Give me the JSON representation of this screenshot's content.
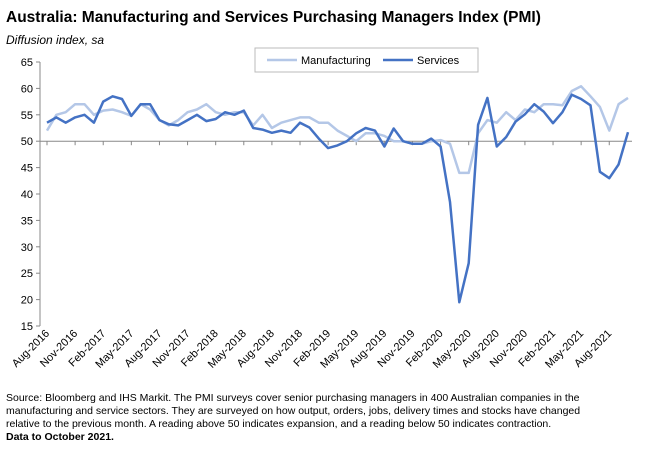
{
  "chart_data": {
    "type": "line",
    "title": "Australia:  Manufacturing and Services Purchasing Managers Index (PMI)",
    "subtitle": "Diffusion index, sa",
    "categories": [
      "Aug-2016",
      null,
      null,
      "Nov-2016",
      null,
      null,
      "Feb-2017",
      null,
      null,
      "May-2017",
      null,
      null,
      "Aug-2017",
      null,
      null,
      "Nov-2017",
      null,
      null,
      "Feb-2018",
      null,
      null,
      "May-2018",
      null,
      null,
      "Aug-2018",
      null,
      null,
      "Nov-2018",
      null,
      null,
      "Feb-2019",
      null,
      null,
      "May-2019",
      null,
      null,
      "Aug-2019",
      null,
      null,
      "Nov-2019",
      null,
      null,
      "Feb-2020",
      null,
      null,
      "May-2020",
      null,
      null,
      "Aug-2020",
      null,
      null,
      "Nov-2020",
      null,
      null,
      "Feb-2021",
      null,
      null,
      "May-2021",
      null,
      null,
      "Aug-2021",
      null,
      null
    ],
    "series": [
      {
        "name": "Manufacturing",
        "color": "#b4c7e7",
        "values": [
          52,
          55,
          55.5,
          57,
          57,
          55,
          55.8,
          56,
          55.5,
          54.8,
          57,
          56,
          54,
          53,
          54,
          55.5,
          56,
          57,
          55.5,
          55,
          55.5,
          55.5,
          53,
          55,
          52.5,
          53.5,
          54,
          54.5,
          54.5,
          53.5,
          53.5,
          52,
          51,
          50,
          51.5,
          51.5,
          51,
          50,
          50,
          49.5,
          49.5,
          50,
          50.2,
          49.5,
          44,
          44,
          51.5,
          54,
          53.5,
          55.5,
          54,
          56,
          55.5,
          57,
          57,
          56.8,
          59.5,
          60.4,
          58.5,
          56.5,
          52,
          57,
          58.2
        ]
      },
      {
        "name": "Services",
        "color": "#4472c4",
        "values": [
          53.5,
          54.5,
          53.5,
          54.5,
          55,
          53.5,
          57.5,
          58.5,
          58,
          54.8,
          57,
          57,
          54,
          53.2,
          53,
          54,
          55,
          53.8,
          54.2,
          55.5,
          55,
          55.8,
          52.5,
          52.2,
          51.6,
          52,
          51.6,
          53.5,
          52.6,
          50.5,
          48.7,
          49.2,
          50,
          51.5,
          52.5,
          52,
          49,
          52.4,
          50,
          49.5,
          49.5,
          50.5,
          49,
          38.5,
          19.5,
          26.9,
          53.1,
          58.2,
          49,
          50.8,
          53.7,
          55.1,
          57,
          55.6,
          53.4,
          55.5,
          58.8,
          58,
          56.8,
          44.2,
          43,
          45.6,
          51.7
        ]
      }
    ],
    "ylim": [
      15,
      65
    ],
    "yticks": [
      15,
      20,
      25,
      30,
      35,
      40,
      45,
      50,
      55,
      60,
      65
    ],
    "xaxis_crosses": 50,
    "grid": false,
    "legend": "top",
    "source": [
      "Source: Bloomberg and IHS Markit.  The PMI surveys cover senior purchasing managers in 400 Australian companies in the",
      "manufacturing and service sectors.  They are surveyed on how output, orders, jobs, delivery times and stocks have changed",
      "relative to the previous month.  A reading above 50 indicates expansion, and a reading below 50 indicates contraction."
    ],
    "footnote": "Data to October 2021."
  }
}
